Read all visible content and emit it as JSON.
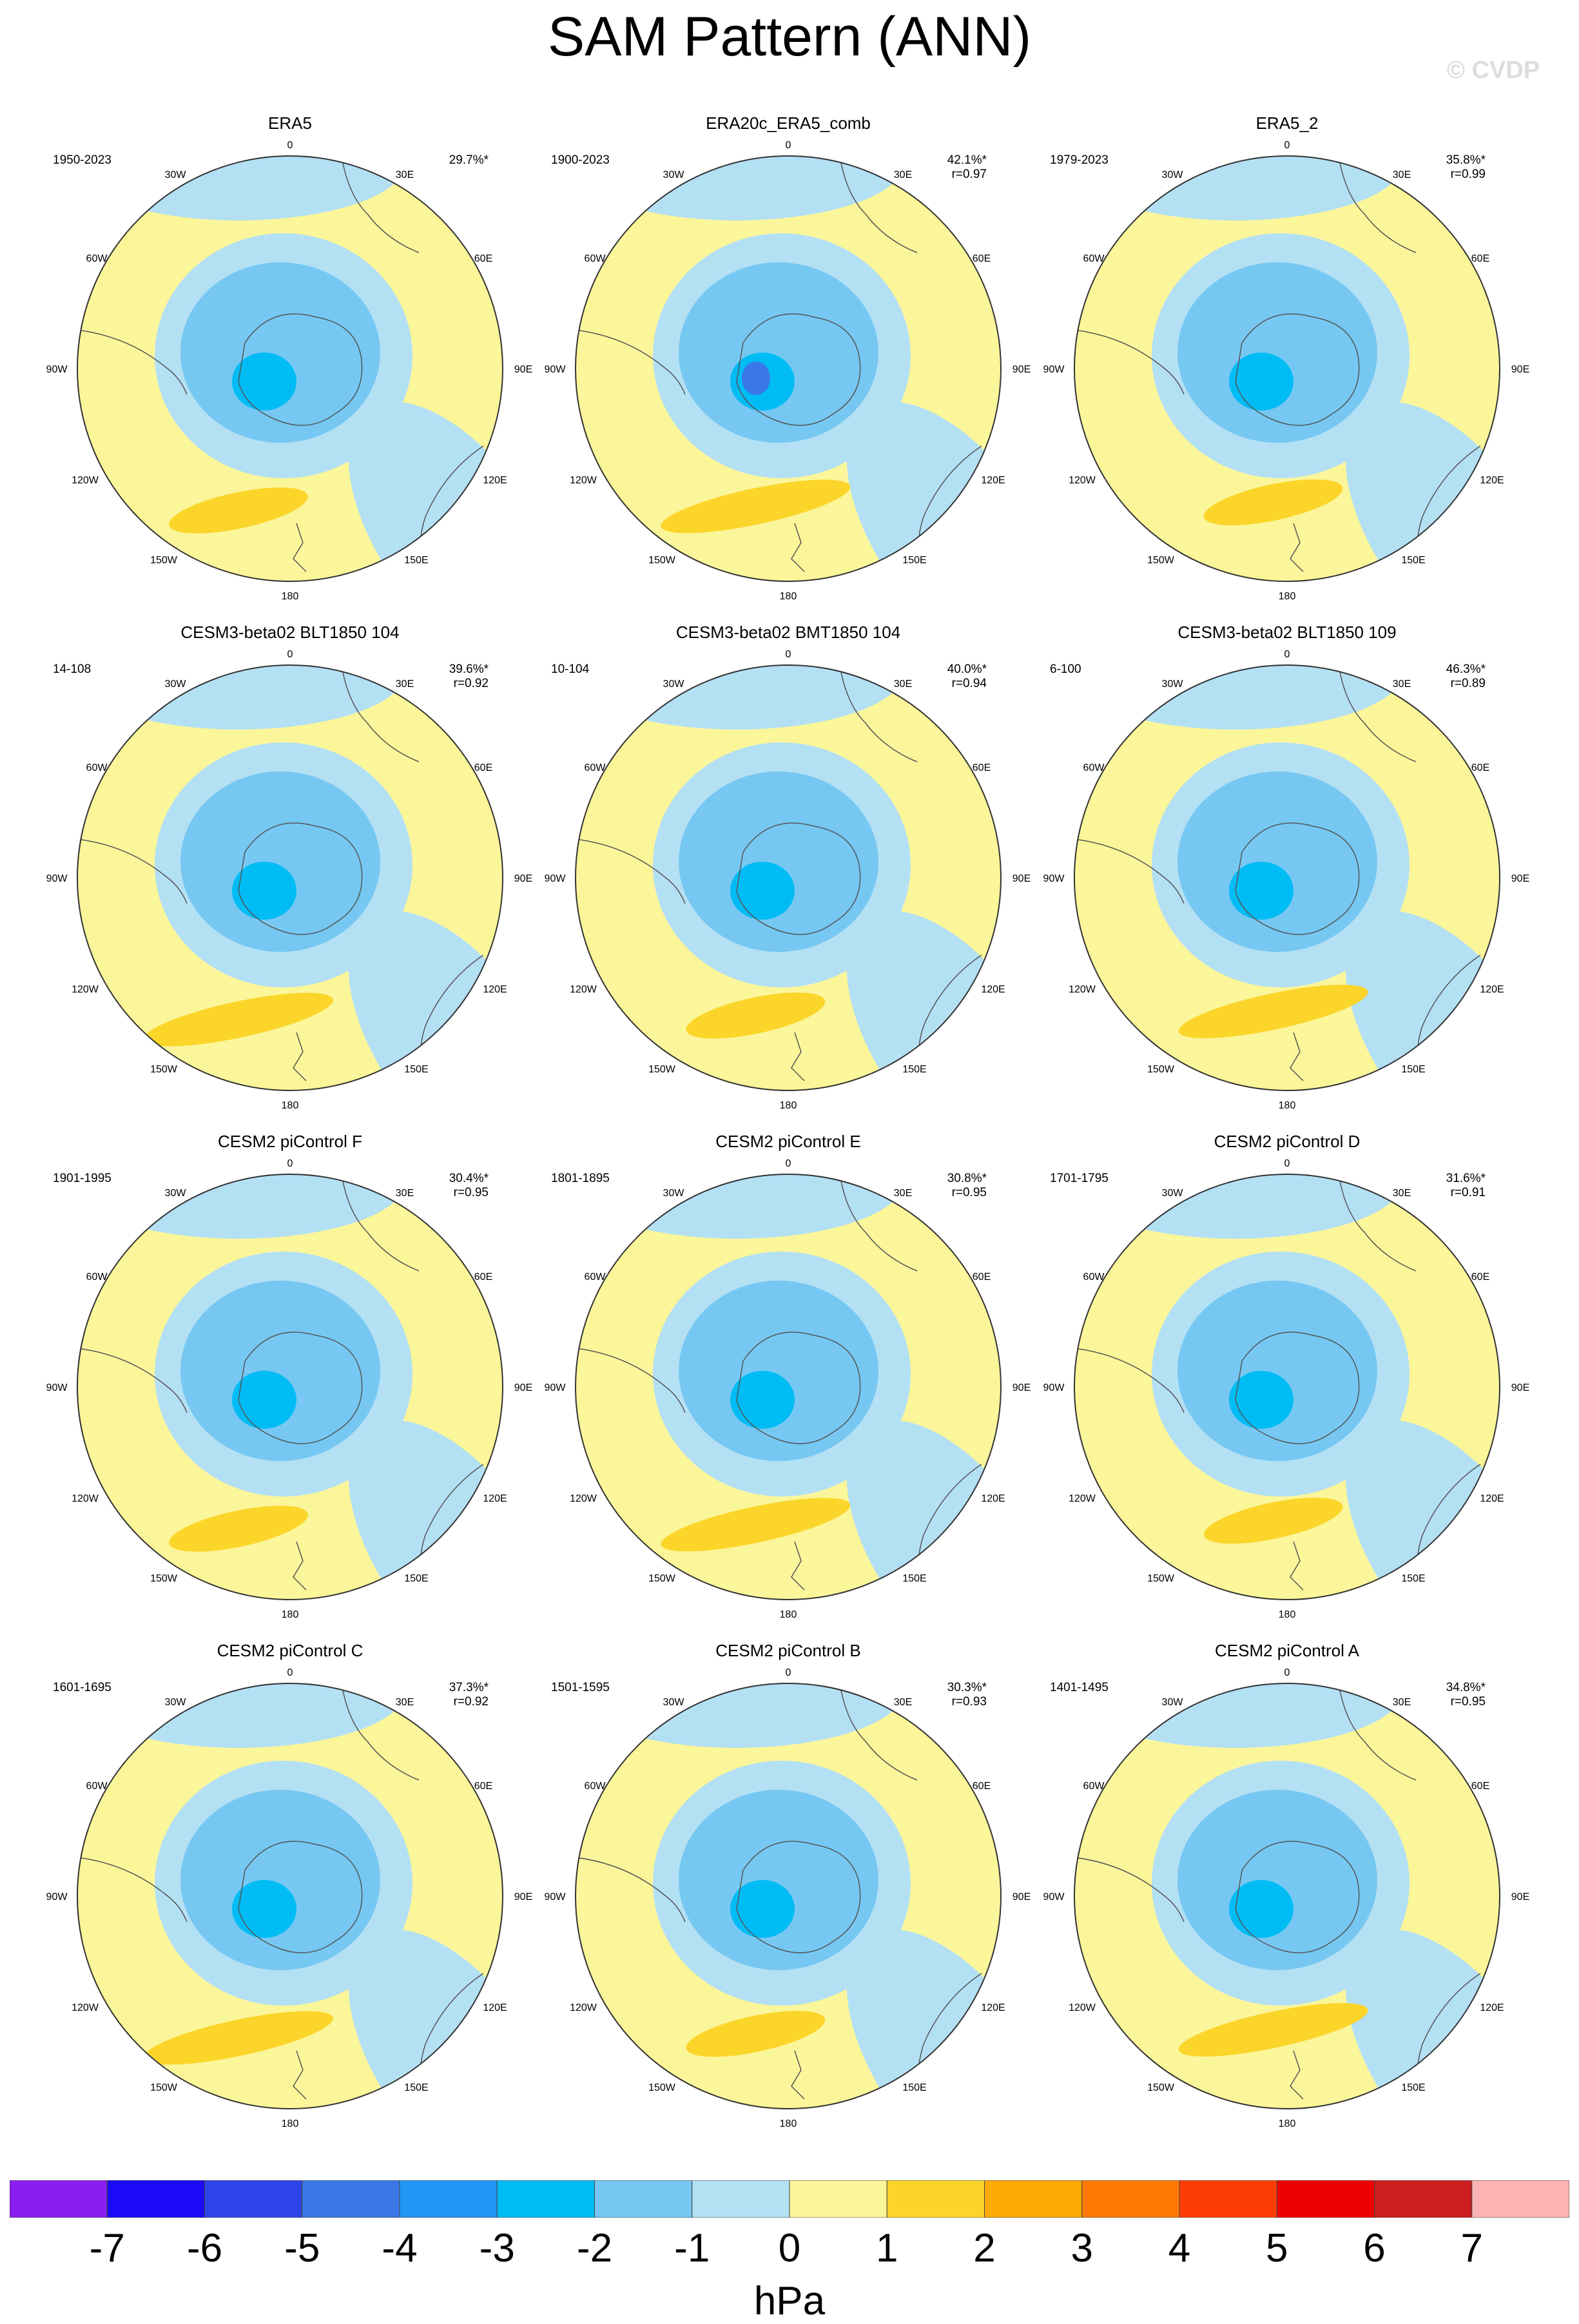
{
  "title": "SAM Pattern (ANN)",
  "watermark": "© CVDP",
  "unit_label": "hPa",
  "colorbar": {
    "ticks": [
      "-7",
      "-6",
      "-5",
      "-4",
      "-3",
      "-2",
      "-1",
      "0",
      "1",
      "2",
      "3",
      "4",
      "5",
      "6",
      "7"
    ],
    "colors": [
      "#8a1ef0",
      "#1a0af5",
      "#2e44e8",
      "#3a78e8",
      "#2196f5",
      "#00bcf5",
      "#76c8f2",
      "#b4e0f4",
      "#fbf69a",
      "#fcd52a",
      "#fcaa05",
      "#fd7a05",
      "#fe3d05",
      "#ee0000",
      "#cc1e1e",
      "#fbb3b3"
    ]
  },
  "map_labels": {
    "top": "0",
    "top_left": "30W",
    "top_right": "30E",
    "upper_left": "60W",
    "upper_right": "60E",
    "left": "90W",
    "right": "90E",
    "lower_left": "120W",
    "lower_right": "120E",
    "bottom_left": "150W",
    "bottom_right": "150E",
    "bottom": "180"
  },
  "panels": [
    {
      "title": "ERA5",
      "period": "1950-2023",
      "pct": "29.7%*",
      "corr": "",
      "anom": [
        0.8,
        -2.2,
        1.2,
        0.6,
        0.7
      ]
    },
    {
      "title": "ERA20c_ERA5_comb",
      "period": "1900-2023",
      "pct": "42.1%*",
      "corr": "r=0.97",
      "anom": [
        -0.8,
        -2.9,
        0.8,
        0.3,
        0.6
      ]
    },
    {
      "title": "ERA5_2",
      "period": "1979-2023",
      "pct": "35.8%*",
      "corr": "r=0.99",
      "anom": [
        0.8,
        -2.2,
        1.2,
        0.6,
        0.7
      ]
    },
    {
      "title": "CESM3-beta02 BLT1850 104",
      "period": "14-108",
      "pct": "39.6%*",
      "corr": "r=0.92",
      "anom": [
        0.9,
        -2.4,
        1.3,
        0.5,
        0.8
      ]
    },
    {
      "title": "CESM3-beta02 BMT1850 104",
      "period": "10-104",
      "pct": "40.0%*",
      "corr": "r=0.94",
      "anom": [
        0.9,
        -2.5,
        1.2,
        0.6,
        0.8
      ]
    },
    {
      "title": "CESM3-beta02 BLT1850 109",
      "period": "6-100",
      "pct": "46.3%*",
      "corr": "r=0.89",
      "anom": [
        0.9,
        -2.6,
        1.3,
        0.4,
        0.7
      ]
    },
    {
      "title": "CESM2 piControl F",
      "period": "1901-1995",
      "pct": "30.4%*",
      "corr": "r=0.95",
      "anom": [
        0.8,
        -2.3,
        1.2,
        0.7,
        0.9
      ]
    },
    {
      "title": "CESM2 piControl E",
      "period": "1801-1895",
      "pct": "30.8%*",
      "corr": "r=0.95",
      "anom": [
        0.8,
        -2.3,
        1.1,
        0.7,
        0.8
      ]
    },
    {
      "title": "CESM2 piControl D",
      "period": "1701-1795",
      "pct": "31.6%*",
      "corr": "r=0.91",
      "anom": [
        0.8,
        -2.3,
        1.1,
        0.5,
        0.8
      ]
    },
    {
      "title": "CESM2 piControl C",
      "period": "1601-1695",
      "pct": "37.3%*",
      "corr": "r=0.92",
      "anom": [
        0.9,
        -2.3,
        1.2,
        0.6,
        0.8
      ]
    },
    {
      "title": "CESM2 piControl B",
      "period": "1501-1595",
      "pct": "30.3%*",
      "corr": "r=0.93",
      "anom": [
        0.8,
        -2.3,
        1.3,
        0.6,
        0.8
      ]
    },
    {
      "title": "CESM2 piControl A",
      "period": "1401-1495",
      "pct": "34.8%*",
      "corr": "r=0.95",
      "anom": [
        0.8,
        -2.3,
        1.2,
        0.6,
        0.9
      ]
    }
  ]
}
